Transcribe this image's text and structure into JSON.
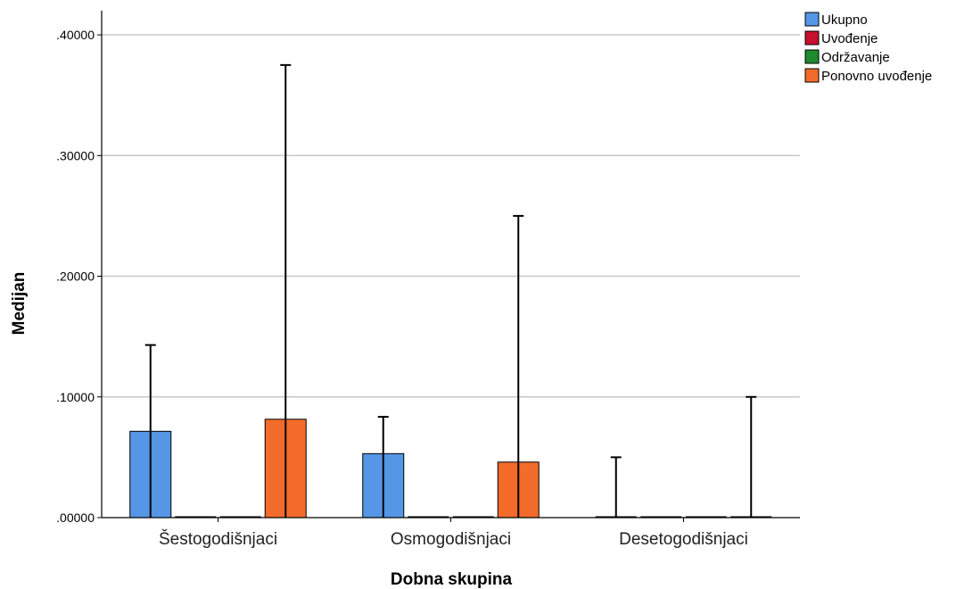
{
  "chart_data": {
    "type": "bar",
    "title": "",
    "xlabel": "Dobna skupina",
    "ylabel": "Medijan",
    "ylim": [
      0,
      0.42
    ],
    "yticks": [
      0,
      0.1,
      0.2,
      0.3,
      0.4
    ],
    "ytick_labels": [
      ".00000",
      ".10000",
      ".20000",
      ".30000",
      ".40000"
    ],
    "grid": true,
    "legend_position": "top-right",
    "error_bars": true,
    "categories": [
      "Šestogodišnjaci",
      "Osmogodišnjaci",
      "Desetogodišnjaci"
    ],
    "series": [
      {
        "name": "Ukupno",
        "color": "#5596E6",
        "values": [
          0.0715,
          0.053,
          0.0
        ],
        "error_upper": [
          0.143,
          0.0835,
          0.05
        ]
      },
      {
        "name": "Uvođenje",
        "color": "#C8102E",
        "values": [
          0.0,
          0.0,
          0.0
        ],
        "error_upper": [
          0.0,
          0.0,
          0.0
        ]
      },
      {
        "name": "Održavanje",
        "color": "#1F8A2E",
        "values": [
          0.0,
          0.0,
          0.0
        ],
        "error_upper": [
          0.0,
          0.0,
          0.0
        ]
      },
      {
        "name": "Ponovno uvođenje",
        "color": "#F26B2A",
        "values": [
          0.0815,
          0.046,
          0.0
        ],
        "error_upper": [
          0.375,
          0.25,
          0.1
        ]
      }
    ]
  }
}
